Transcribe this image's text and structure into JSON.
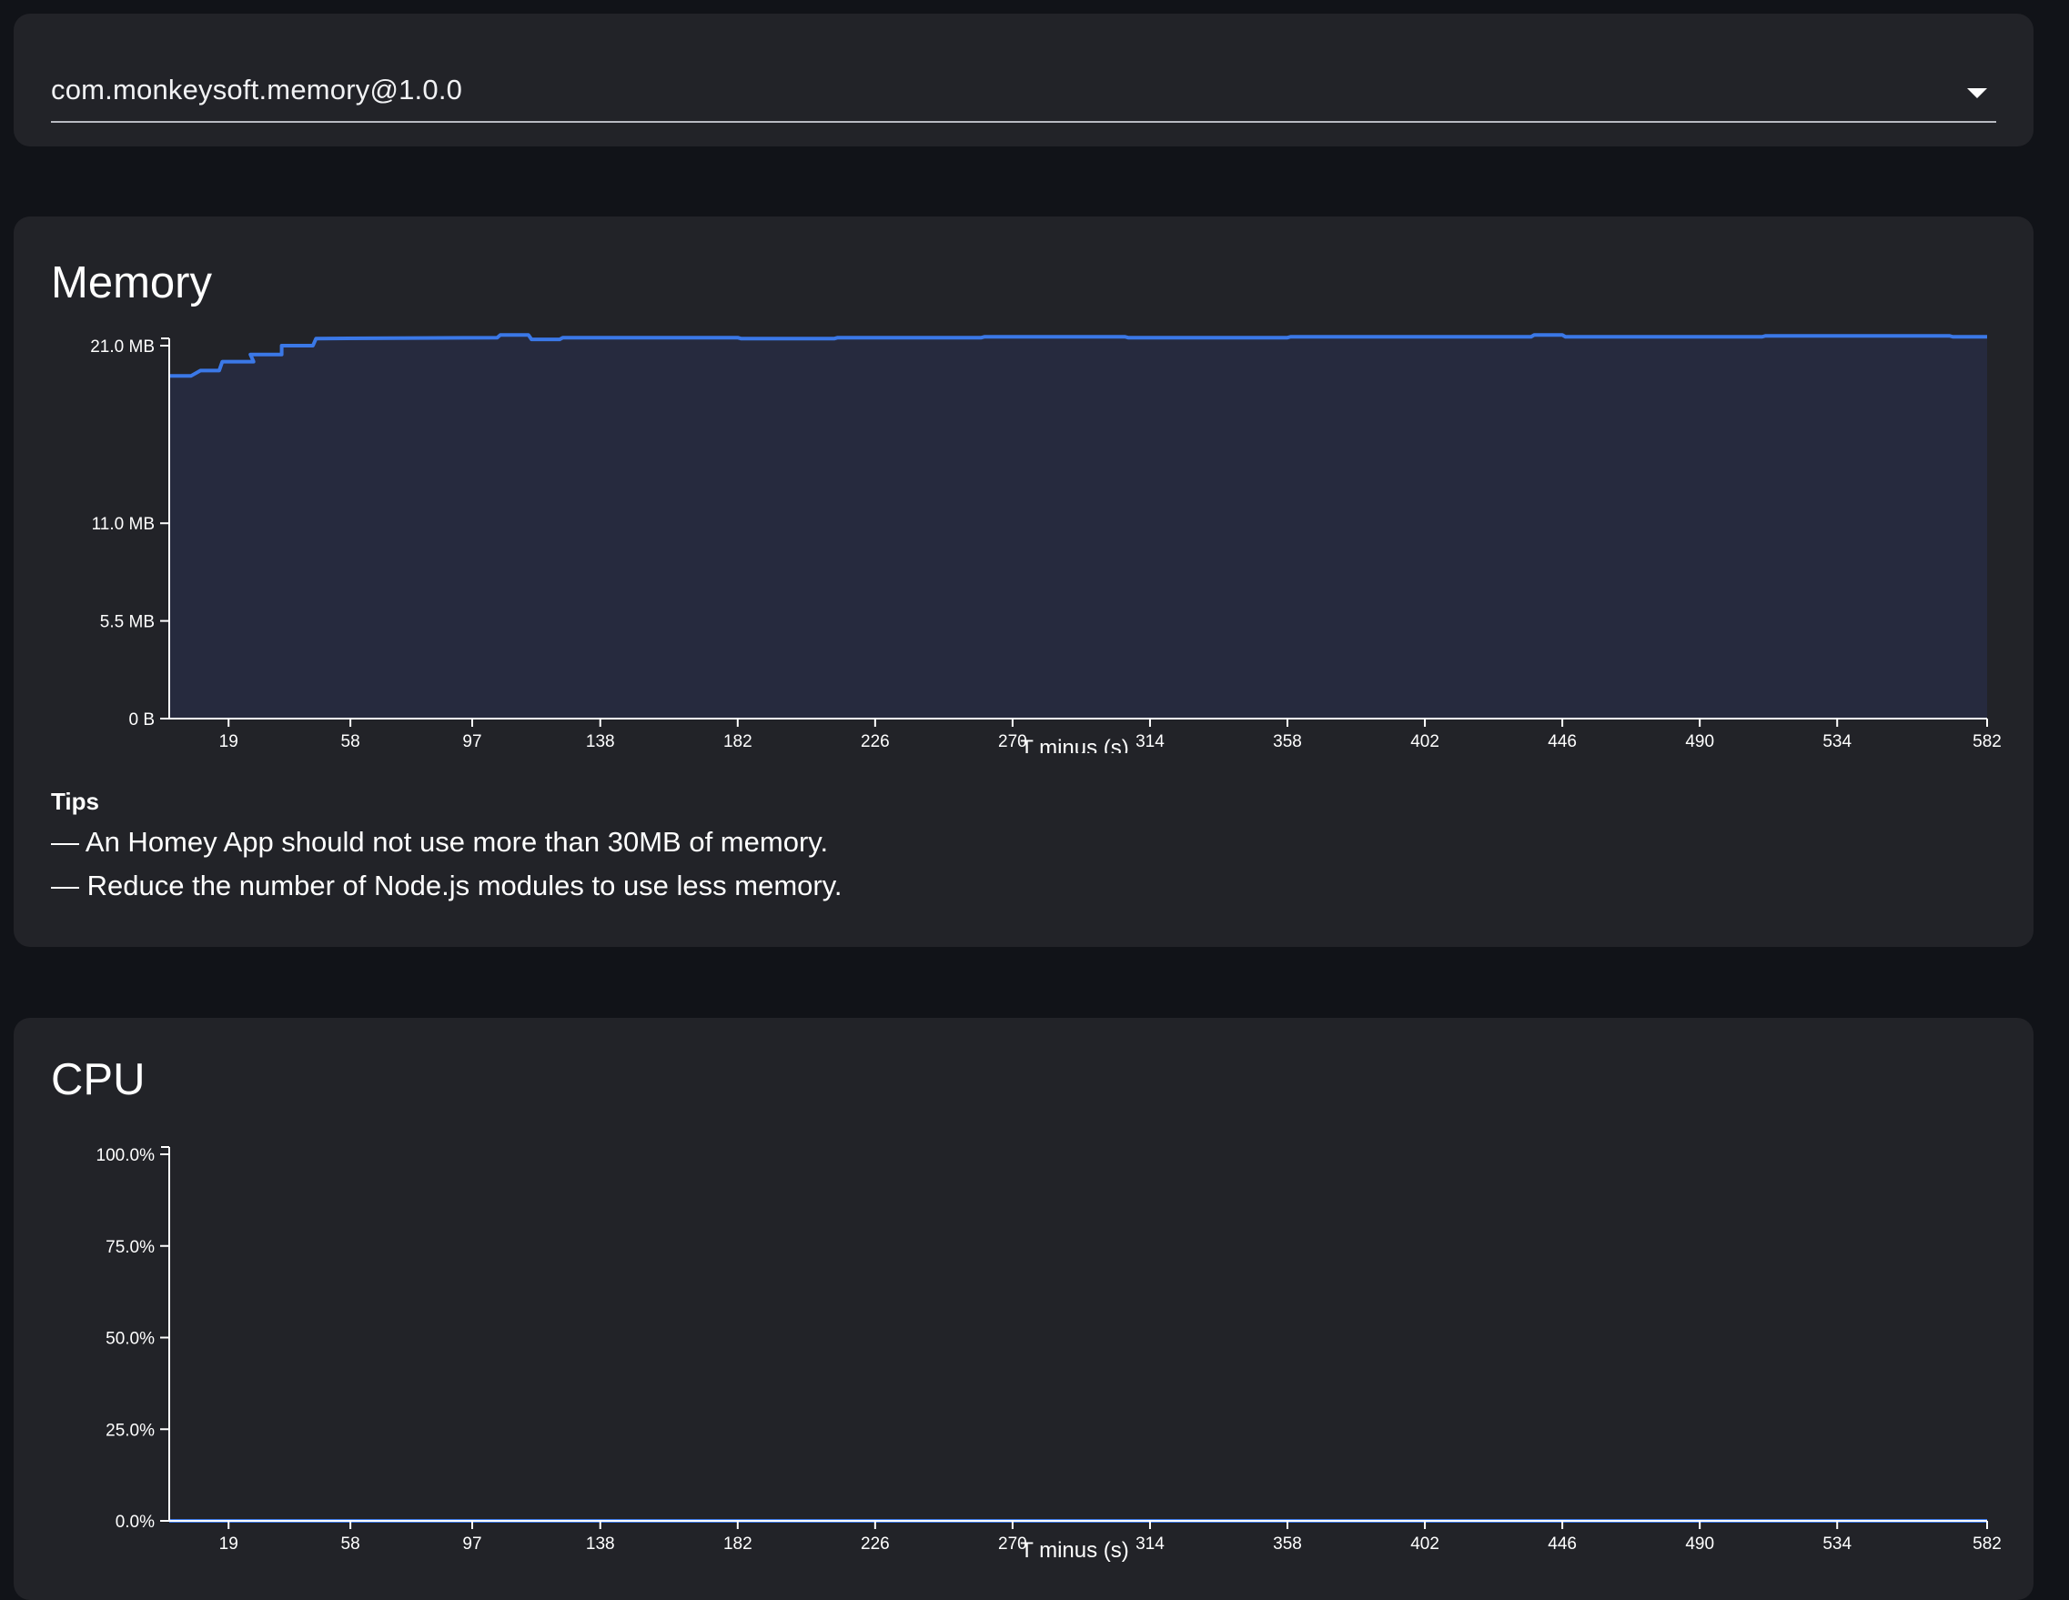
{
  "app_selector": {
    "value": "com.monkeysoft.memory@1.0.0"
  },
  "memory": {
    "title": "Memory",
    "tips_title": "Tips",
    "tips": [
      "— An Homey App should not use more than 30MB of memory.",
      "— Reduce the number of Node.js modules to use less memory."
    ]
  },
  "cpu": {
    "title": "CPU"
  },
  "colors": {
    "line": "#3b78e7",
    "area": "#262a3e",
    "axis": "#ffffff"
  },
  "chart_data": [
    {
      "type": "area",
      "title": "Memory",
      "xlabel": "T minus (s)",
      "ylabel": "",
      "x_ticks": [
        19,
        58,
        97,
        138,
        182,
        226,
        270,
        314,
        358,
        402,
        446,
        490,
        534,
        582
      ],
      "y_ticks": [
        "0 B",
        "5.5 MB",
        "11.0 MB",
        "21.0 MB"
      ],
      "y_tick_values": [
        0,
        5.5,
        11.0,
        21.0
      ],
      "ylim": [
        0,
        21.0
      ],
      "xlim": [
        0,
        582
      ],
      "unit": "MB",
      "series": [
        {
          "x": [
            0,
            7,
            10,
            16,
            17,
            27,
            26,
            36,
            36,
            46,
            47,
            105,
            106,
            115,
            116,
            125,
            126,
            182,
            183,
            213,
            214,
            260,
            261,
            306,
            307,
            358,
            359,
            436,
            437,
            446,
            447,
            510,
            511,
            534,
            535,
            570,
            571,
            582
          ],
          "y": [
            19.3,
            19.3,
            19.6,
            19.6,
            20.1,
            20.1,
            20.5,
            20.5,
            21.0,
            21.0,
            21.4,
            21.45,
            21.6,
            21.6,
            21.35,
            21.35,
            21.45,
            21.45,
            21.4,
            21.4,
            21.45,
            21.45,
            21.5,
            21.5,
            21.45,
            21.45,
            21.5,
            21.5,
            21.6,
            21.6,
            21.5,
            21.5,
            21.55,
            21.55,
            21.55,
            21.55,
            21.5,
            21.5
          ]
        }
      ]
    },
    {
      "type": "line",
      "title": "CPU",
      "xlabel": "T minus (s)",
      "ylabel": "",
      "x_ticks": [
        19,
        58,
        97,
        138,
        182,
        226,
        270,
        314,
        358,
        402,
        446,
        490,
        534,
        582
      ],
      "y_ticks": [
        "0.0%",
        "25.0%",
        "50.0%",
        "75.0%",
        "100.0%"
      ],
      "y_tick_values": [
        0,
        25,
        50,
        75,
        100
      ],
      "ylim": [
        0,
        100
      ],
      "xlim": [
        0,
        582
      ],
      "series": [
        {
          "x": [
            0,
            582
          ],
          "y": [
            0,
            0
          ]
        }
      ]
    }
  ]
}
